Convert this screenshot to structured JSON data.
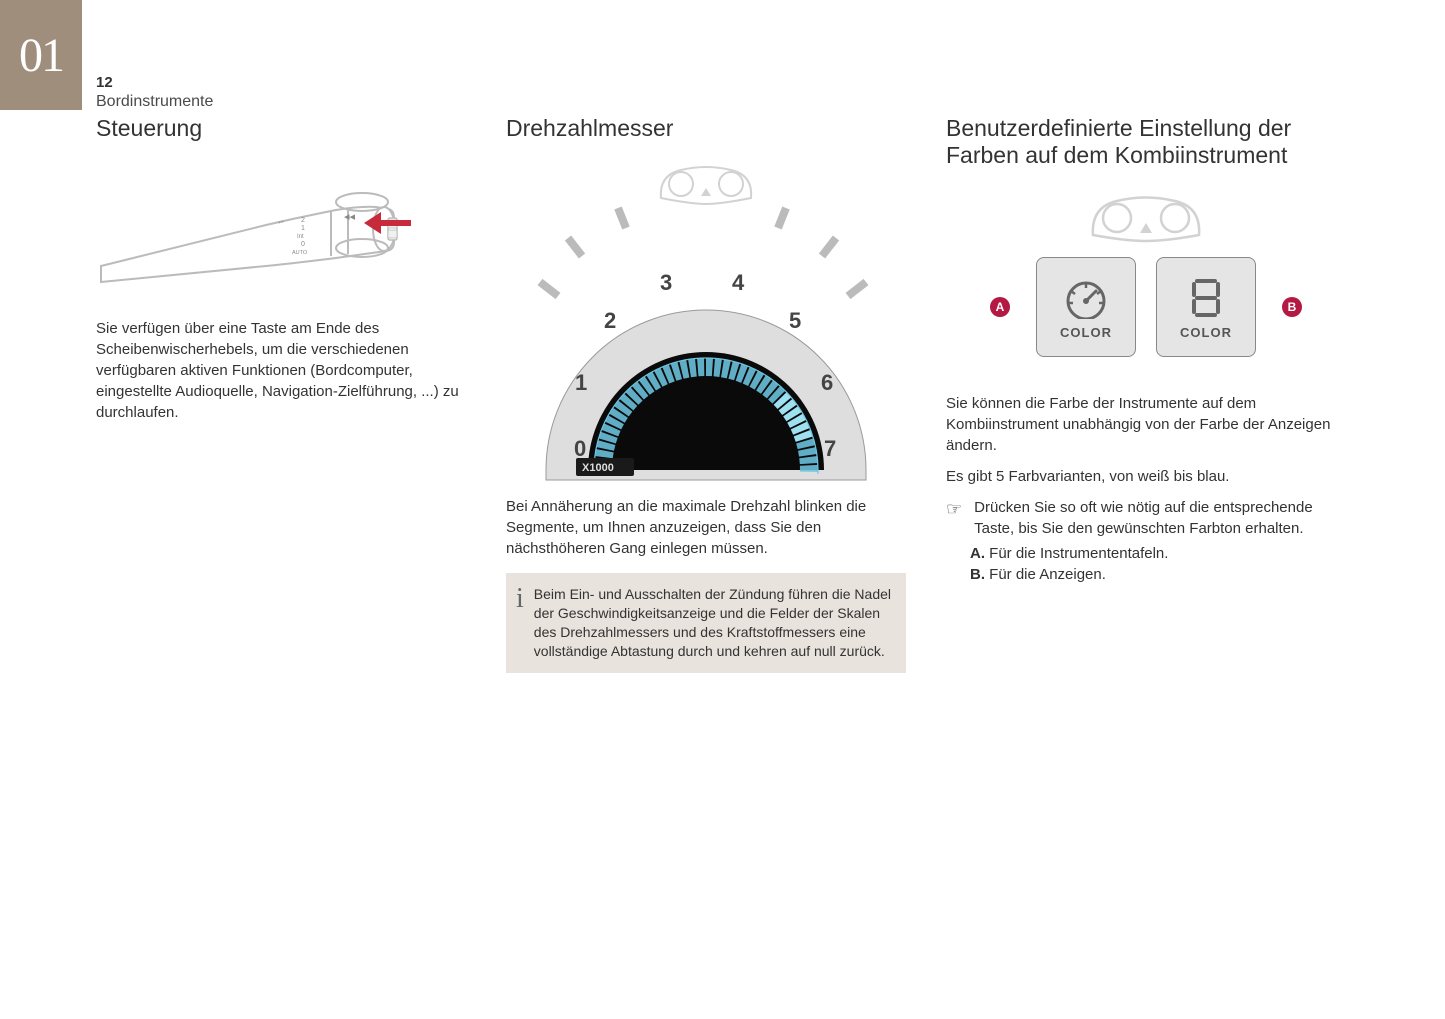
{
  "chapter_number": "01",
  "page_number": "12",
  "section_name": "Bordinstrumente",
  "col1": {
    "heading": "Steuerung",
    "text": "Sie verfügen über eine Taste am Ende des Scheibenwischerhebels, um die verschiedenen verfügbaren aktiven Funktionen (Bordcomputer, eingestellte Audioquelle, Navigation-Zielführung, ...) zu durchlaufen.",
    "stalk": {
      "body_stroke": "#bbbbbb",
      "body_fill": "#ffffff",
      "arrow_fill": "#c72a3a",
      "labels_2": "2",
      "labels_1": "1",
      "labels_int": "Int",
      "labels_0": "0",
      "labels_auto": "AUTO",
      "rewind_glyph": "◂◂"
    }
  },
  "col2": {
    "heading": "Drehzahlmesser",
    "text": "Bei Annäherung an die maximale Drehzahl blinken die Segmente, um Ihnen anzuzeigen, dass Sie den nächsthöheren Gang einlegen müssen.",
    "info": "Beim Ein- und Ausschalten der Zündung führen die Nadel der Geschwindigkeitsanzeige und die Felder der Skalen des Drehzahlmessers und des Kraftstoffmessers eine vollständige Abtastung durch und kehren auf null zurück.",
    "tacho": {
      "bezel_fill": "#dedede",
      "bezel_stroke": "#9a9a9a",
      "face_fill": "#0a0a0a",
      "segment_color": "#6cc4e0",
      "segment_highlight": "#9de0f0",
      "digit_color": "#444444",
      "digits": [
        "0",
        "1",
        "2",
        "3",
        "4",
        "5",
        "6",
        "7"
      ],
      "x1000_label": "X1000",
      "cluster_stroke": "#d2d2d2"
    }
  },
  "col3": {
    "heading": "Benutzerdefinierte Einstellung der Farben auf dem Kombiinstrument",
    "text1": "Sie können die Farbe der Instrumente auf dem Kombiinstrument unabhängig von der Farbe der Anzeigen ändern.",
    "text2": "Es gibt 5 Farbvarianten, von weiß bis blau.",
    "bullet": "Drücken Sie so oft wie nötig auf die entsprechende Taste, bis Sie den gewünschten Farbton erhalten.",
    "item_a_label": "A.",
    "item_a_text": " Für die Instrumententafeln.",
    "item_b_label": "B.",
    "item_b_text": " Für die Anzeigen.",
    "color_panel": {
      "cluster_stroke": "#d2d2d2",
      "btn_bg": "#e5e5e5",
      "btn_border": "#888888",
      "callout_bg": "#b31942",
      "callout_a": "A",
      "callout_b": "B",
      "btn_label": "COLOR",
      "glyph_color": "#666666"
    }
  }
}
